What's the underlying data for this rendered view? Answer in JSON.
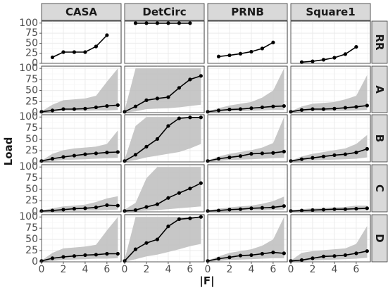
{
  "chart_data": {
    "type": "line",
    "facet_columns": [
      "CASA",
      "DetCirc",
      "PRNB",
      "Square1"
    ],
    "facet_rows": [
      "RR",
      "A",
      "B",
      "C",
      "D"
    ],
    "xlabel": "|F|",
    "ylabel": "Load",
    "xlim": [
      0,
      7.3
    ],
    "ylim": [
      0,
      105
    ],
    "x_ticks": [
      0,
      2,
      4,
      6
    ],
    "y_ticks": [
      0,
      25,
      50,
      75,
      100
    ],
    "grid": true,
    "panels": [
      {
        "row": "RR",
        "col": "CASA",
        "x": [
          1,
          2,
          3,
          4,
          5,
          6
        ],
        "y": [
          15,
          28,
          28,
          28,
          42,
          70
        ],
        "lower": null,
        "upper": null
      },
      {
        "row": "RR",
        "col": "DetCirc",
        "x": [
          1,
          2,
          3,
          4,
          5,
          6
        ],
        "y": [
          100,
          100,
          100,
          100,
          100,
          100
        ],
        "lower": null,
        "upper": null
      },
      {
        "row": "RR",
        "col": "PRNB",
        "x": [
          1,
          2,
          3,
          4,
          5,
          6
        ],
        "y": [
          17,
          20,
          24,
          29,
          37,
          52
        ],
        "lower": null,
        "upper": null
      },
      {
        "row": "RR",
        "col": "Square1",
        "x": [
          1,
          2,
          3,
          4,
          5,
          6
        ],
        "y": [
          3,
          5,
          9,
          14,
          23,
          41
        ],
        "lower": null,
        "upper": null
      },
      {
        "row": "A",
        "col": "CASA",
        "x": [
          0,
          1,
          2,
          3,
          4,
          5,
          6,
          7
        ],
        "y": [
          2,
          5,
          8,
          8,
          9,
          12,
          15,
          17
        ],
        "lower": [
          0,
          2,
          4,
          4,
          4,
          5,
          5,
          6
        ],
        "upper": [
          3,
          18,
          28,
          30,
          32,
          38,
          70,
          100
        ]
      },
      {
        "row": "A",
        "col": "DetCirc",
        "x": [
          0,
          1,
          2,
          3,
          4,
          5,
          6,
          7
        ],
        "y": [
          2,
          14,
          28,
          32,
          35,
          56,
          75,
          83
        ],
        "lower": [
          0,
          3,
          8,
          9,
          10,
          12,
          15,
          18
        ],
        "upper": [
          5,
          100,
          100,
          100,
          100,
          100,
          100,
          100
        ]
      },
      {
        "row": "A",
        "col": "PRNB",
        "x": [
          0,
          1,
          2,
          3,
          4,
          5,
          6,
          7
        ],
        "y": [
          2,
          5,
          7,
          8,
          10,
          12,
          14,
          15
        ],
        "lower": [
          0,
          2,
          3,
          3,
          4,
          5,
          6,
          6
        ],
        "upper": [
          3,
          10,
          16,
          20,
          24,
          34,
          50,
          100
        ]
      },
      {
        "row": "A",
        "col": "Square1",
        "x": [
          0,
          1,
          2,
          3,
          4,
          5,
          6,
          7
        ],
        "y": [
          2,
          6,
          8,
          8,
          9,
          11,
          13,
          16
        ],
        "lower": [
          0,
          2,
          3,
          3,
          4,
          4,
          5,
          6
        ],
        "upper": [
          3,
          14,
          20,
          22,
          24,
          30,
          38,
          85
        ]
      },
      {
        "row": "B",
        "col": "CASA",
        "x": [
          0,
          1,
          2,
          3,
          4,
          5,
          6,
          7
        ],
        "y": [
          2,
          7,
          11,
          14,
          17,
          19,
          21,
          22
        ],
        "lower": [
          0,
          2,
          4,
          5,
          6,
          7,
          8,
          9
        ],
        "upper": [
          3,
          18,
          26,
          30,
          32,
          34,
          40,
          70
        ]
      },
      {
        "row": "B",
        "col": "DetCirc",
        "x": [
          0,
          1,
          2,
          3,
          4,
          5,
          6,
          7
        ],
        "y": [
          2,
          16,
          34,
          51,
          80,
          97,
          99,
          99
        ],
        "lower": [
          0,
          4,
          10,
          14,
          18,
          22,
          30,
          40
        ],
        "upper": [
          5,
          80,
          100,
          100,
          100,
          100,
          100,
          100
        ]
      },
      {
        "row": "B",
        "col": "PRNB",
        "x": [
          0,
          1,
          2,
          3,
          4,
          5,
          6,
          7
        ],
        "y": [
          2,
          7,
          10,
          13,
          18,
          19,
          20,
          23
        ],
        "lower": [
          0,
          2,
          4,
          5,
          6,
          7,
          8,
          9
        ],
        "upper": [
          3,
          12,
          18,
          22,
          26,
          32,
          42,
          100
        ]
      },
      {
        "row": "B",
        "col": "Square1",
        "x": [
          0,
          1,
          2,
          3,
          4,
          5,
          6,
          7
        ],
        "y": [
          2,
          6,
          9,
          12,
          15,
          17,
          21,
          29
        ],
        "lower": [
          0,
          2,
          3,
          4,
          5,
          6,
          7,
          10
        ],
        "upper": [
          3,
          12,
          18,
          22,
          26,
          30,
          40,
          60
        ]
      },
      {
        "row": "C",
        "col": "CASA",
        "x": [
          0,
          1,
          2,
          3,
          4,
          5,
          6,
          7
        ],
        "y": [
          2,
          3,
          5,
          7,
          8,
          10,
          15,
          14
        ],
        "lower": [
          0,
          1,
          2,
          2,
          3,
          3,
          4,
          5
        ],
        "upper": [
          3,
          8,
          12,
          14,
          16,
          22,
          30,
          35
        ]
      },
      {
        "row": "C",
        "col": "DetCirc",
        "x": [
          0,
          1,
          2,
          3,
          4,
          5,
          6,
          7
        ],
        "y": [
          2,
          4,
          11,
          17,
          31,
          42,
          52,
          64
        ],
        "lower": [
          0,
          1,
          3,
          4,
          6,
          8,
          10,
          12
        ],
        "upper": [
          5,
          20,
          75,
          100,
          100,
          100,
          100,
          100
        ]
      },
      {
        "row": "C",
        "col": "PRNB",
        "x": [
          0,
          1,
          2,
          3,
          4,
          5,
          6,
          7
        ],
        "y": [
          2,
          3,
          5,
          6,
          8,
          9,
          10,
          13
        ],
        "lower": [
          0,
          1,
          2,
          2,
          3,
          3,
          4,
          5
        ],
        "upper": [
          3,
          7,
          10,
          12,
          14,
          18,
          24,
          34
        ]
      },
      {
        "row": "C",
        "col": "Square1",
        "x": [
          0,
          1,
          2,
          3,
          4,
          5,
          6,
          7
        ],
        "y": [
          2,
          3,
          4,
          5,
          6,
          6,
          7,
          8
        ],
        "lower": [
          0,
          1,
          1,
          2,
          2,
          2,
          3,
          3
        ],
        "upper": [
          3,
          6,
          8,
          9,
          10,
          11,
          14,
          14
        ]
      },
      {
        "row": "D",
        "col": "CASA",
        "x": [
          0,
          1,
          2,
          3,
          4,
          5,
          6,
          7
        ],
        "y": [
          2,
          8,
          11,
          13,
          15,
          16,
          18,
          18
        ],
        "lower": [
          0,
          2,
          4,
          5,
          6,
          7,
          7,
          8
        ],
        "upper": [
          3,
          20,
          30,
          32,
          34,
          38,
          70,
          100
        ]
      },
      {
        "row": "D",
        "col": "DetCirc",
        "x": [
          0,
          1,
          2,
          3,
          4,
          5,
          6,
          7
        ],
        "y": [
          2,
          28,
          42,
          50,
          79,
          95,
          97,
          100
        ],
        "lower": [
          0,
          6,
          12,
          16,
          22,
          28,
          35,
          40
        ],
        "upper": [
          5,
          100,
          100,
          100,
          100,
          100,
          100,
          100
        ]
      },
      {
        "row": "D",
        "col": "PRNB",
        "x": [
          0,
          1,
          2,
          3,
          4,
          5,
          6,
          7
        ],
        "y": [
          2,
          7,
          10,
          14,
          15,
          18,
          21,
          19
        ],
        "lower": [
          0,
          2,
          4,
          5,
          6,
          7,
          8,
          8
        ],
        "upper": [
          3,
          12,
          20,
          24,
          28,
          36,
          50,
          100
        ]
      },
      {
        "row": "D",
        "col": "Square1",
        "x": [
          0,
          1,
          2,
          3,
          4,
          5,
          6,
          7
        ],
        "y": [
          2,
          4,
          8,
          12,
          13,
          15,
          19,
          24
        ],
        "lower": [
          0,
          1,
          3,
          4,
          5,
          6,
          7,
          9
        ],
        "upper": [
          3,
          20,
          24,
          26,
          28,
          30,
          40,
          80
        ]
      }
    ]
  }
}
